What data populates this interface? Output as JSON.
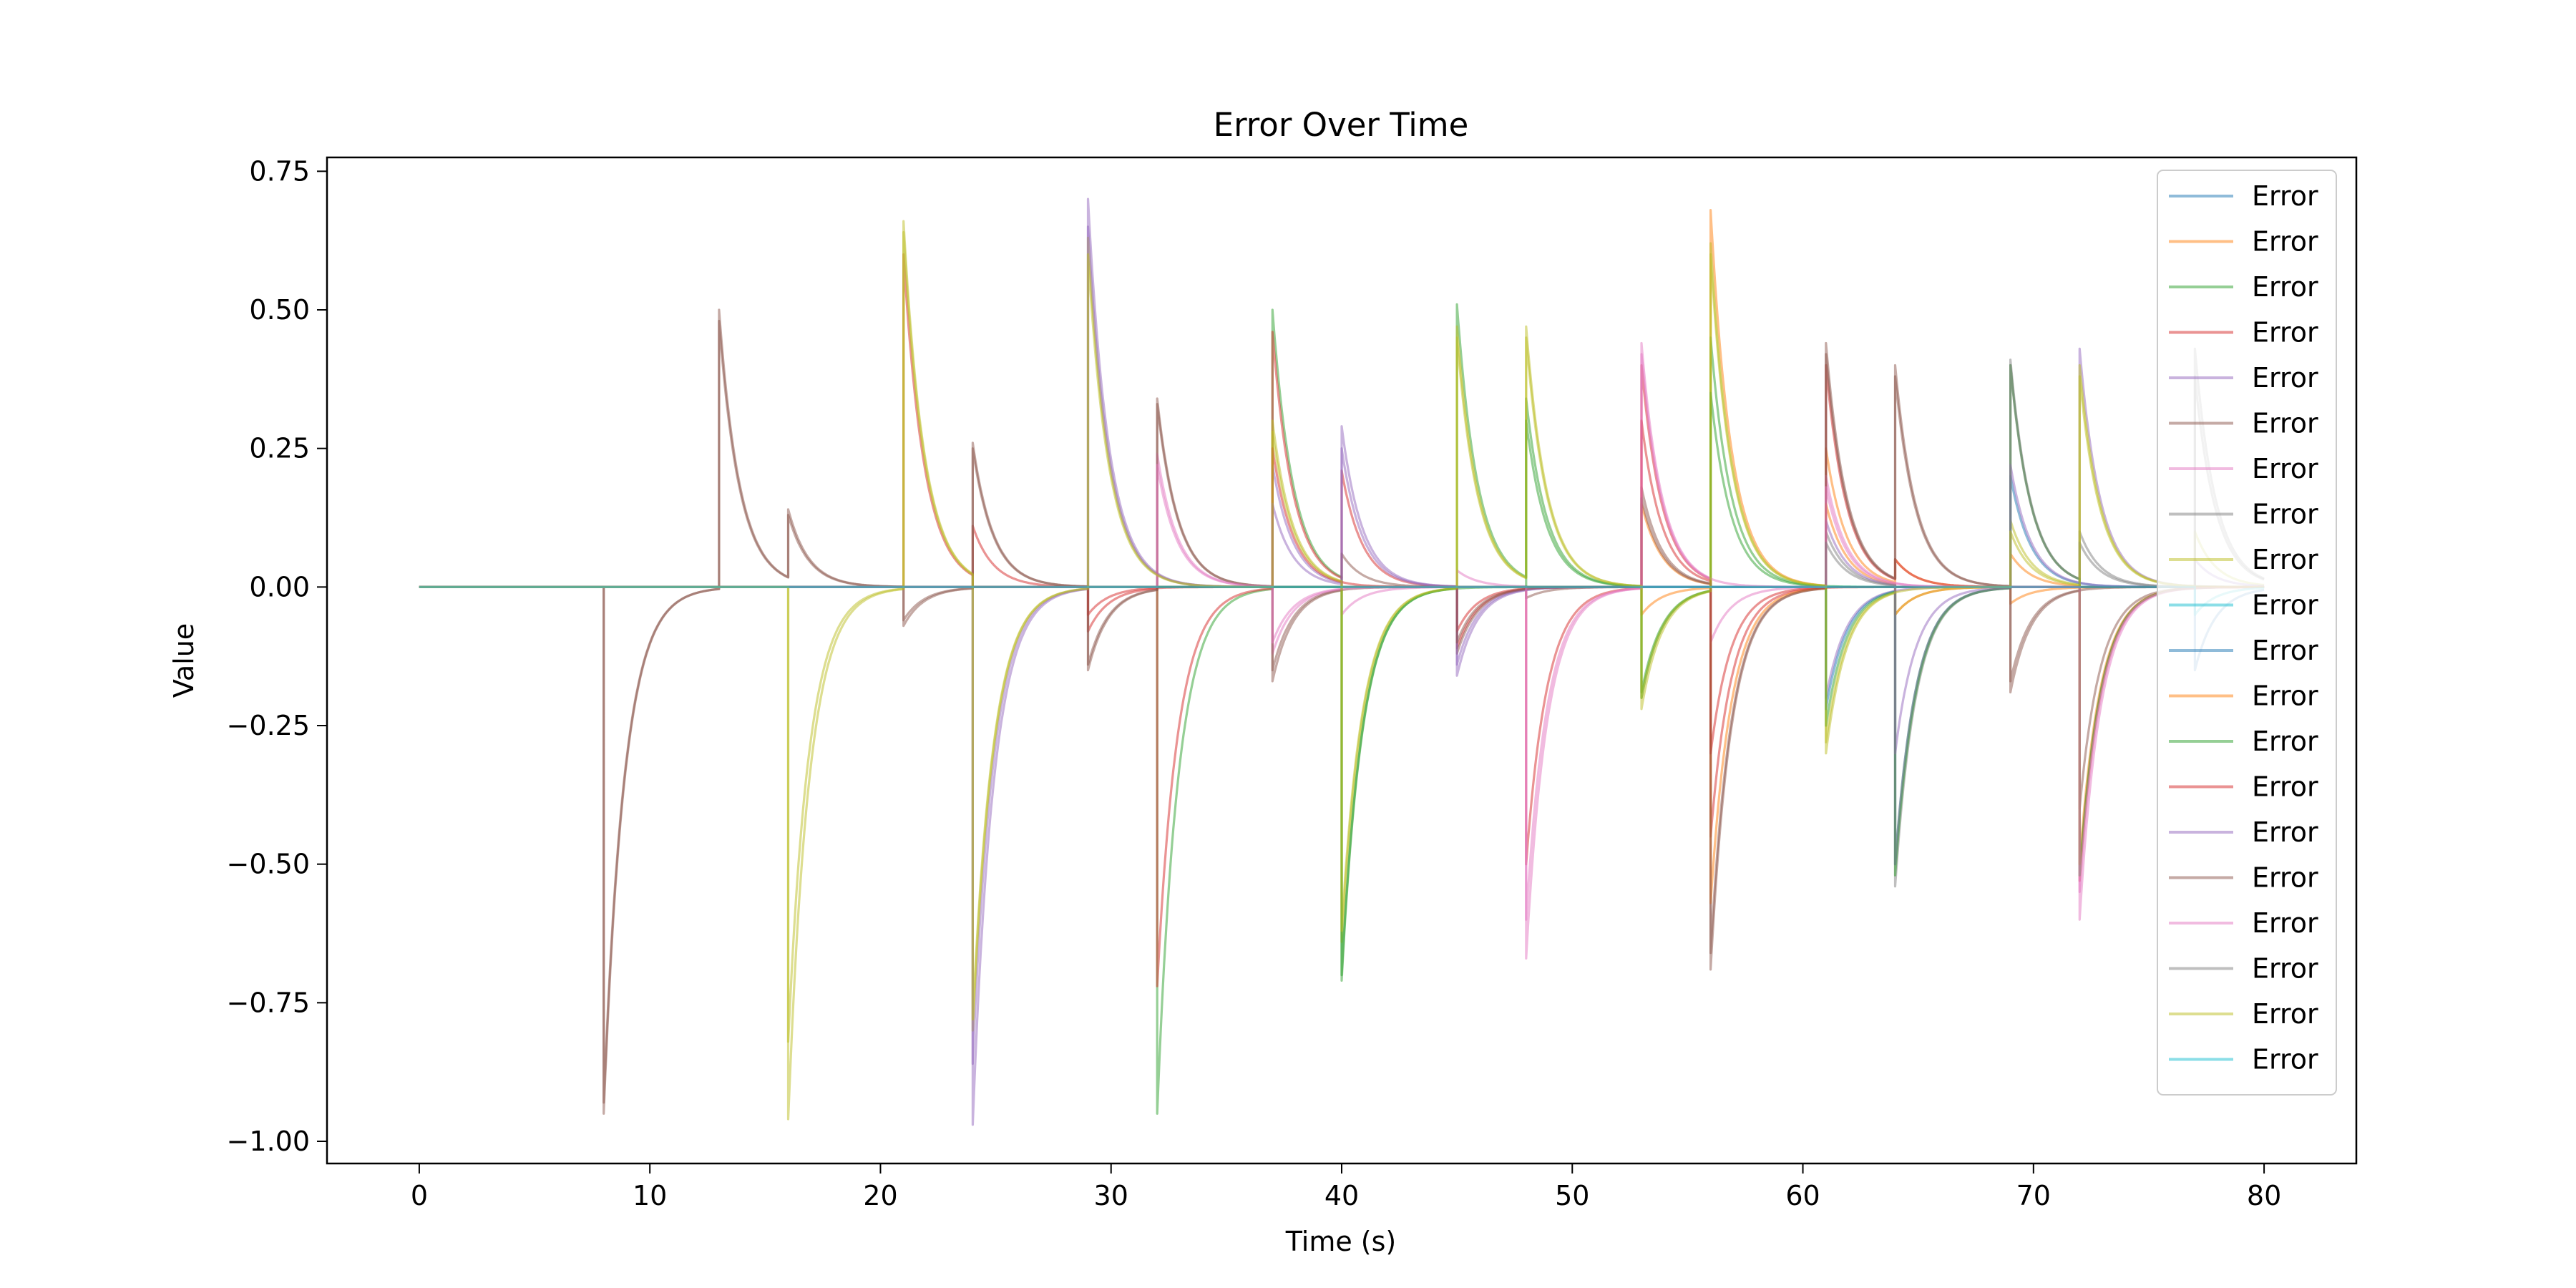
{
  "chart_data": {
    "type": "line",
    "title": "Error Over Time",
    "xlabel": "Time (s)",
    "ylabel": "Value",
    "xlim": [
      -4,
      84
    ],
    "ylim": [
      -1.04,
      0.775
    ],
    "xticks": [
      0,
      10,
      20,
      30,
      40,
      50,
      60,
      70,
      80
    ],
    "yticks": [
      0.75,
      0.5,
      0.25,
      0.0,
      -0.25,
      -0.5,
      -0.75,
      -1.0
    ],
    "xtick_labels": [
      "0",
      "10",
      "20",
      "30",
      "40",
      "50",
      "60",
      "70",
      "80"
    ],
    "ytick_labels": [
      "0.75",
      "0.50",
      "0.25",
      "0.00",
      "−0.25",
      "−0.50",
      "−0.75",
      "−1.00"
    ],
    "grid": false,
    "legend_position": "top-right",
    "t_end": 80,
    "series": [
      {
        "name": "Error",
        "color": "#1f77b4",
        "steps": []
      },
      {
        "name": "Error",
        "color": "#ff7f0e",
        "steps": [
          [
            53,
            0.15
          ],
          [
            56,
            0.68
          ],
          [
            61,
            0.25
          ],
          [
            64,
            0.05
          ],
          [
            69,
            -0.03
          ]
        ]
      },
      {
        "name": "Error",
        "color": "#2ca02c",
        "steps": [
          [
            32,
            -0.95
          ],
          [
            37,
            0.5
          ],
          [
            40,
            -0.71
          ],
          [
            45,
            0.51
          ],
          [
            48,
            0.34
          ],
          [
            53,
            -0.19
          ],
          [
            56,
            0.45
          ]
        ]
      },
      {
        "name": "Error",
        "color": "#d62728",
        "steps": [
          [
            21,
            0.6
          ],
          [
            24,
            0.11
          ],
          [
            29,
            -0.08
          ],
          [
            32,
            -0.72
          ],
          [
            37,
            0.46
          ],
          [
            40,
            0.21
          ],
          [
            45,
            -0.11
          ],
          [
            48,
            -0.5
          ],
          [
            53,
            0.4
          ],
          [
            56,
            -0.45
          ],
          [
            61,
            0.4
          ],
          [
            64,
            0.05
          ],
          [
            72,
            -0.53
          ]
        ]
      },
      {
        "name": "Error",
        "color": "#9467bd",
        "steps": [
          [
            24,
            -0.86
          ],
          [
            29,
            0.7
          ],
          [
            37,
            0.22
          ],
          [
            40,
            0.29
          ],
          [
            45,
            -0.16
          ],
          [
            61,
            -0.2
          ],
          [
            72,
            0.43
          ]
        ]
      },
      {
        "name": "Error",
        "color": "#8c564b",
        "steps": [
          [
            8,
            -0.95
          ],
          [
            13,
            0.5
          ],
          [
            16,
            0.14
          ],
          [
            21,
            -0.07
          ],
          [
            24,
            0.26
          ],
          [
            29,
            -0.15
          ],
          [
            32,
            0.34
          ],
          [
            37,
            -0.17
          ],
          [
            40,
            0.06
          ],
          [
            45,
            -0.12
          ],
          [
            48,
            -0.02
          ],
          [
            53,
            0.18
          ],
          [
            56,
            -0.69
          ],
          [
            61,
            0.44
          ],
          [
            64,
            0.4
          ],
          [
            69,
            -0.19
          ],
          [
            72,
            -0.4
          ]
        ]
      },
      {
        "name": "Error",
        "color": "#e377c2",
        "steps": [
          [
            32,
            0.24
          ],
          [
            37,
            -0.12
          ],
          [
            40,
            -0.05
          ],
          [
            45,
            0.03
          ],
          [
            48,
            -0.67
          ],
          [
            53,
            0.44
          ],
          [
            56,
            -0.1
          ],
          [
            61,
            0.2
          ],
          [
            72,
            -0.6
          ]
        ]
      },
      {
        "name": "Error",
        "color": "#7f7f7f",
        "steps": [
          [
            61,
            0.1
          ],
          [
            64,
            -0.54
          ],
          [
            69,
            0.41
          ],
          [
            72,
            0.1
          ],
          [
            77,
            0.43
          ]
        ]
      },
      {
        "name": "Error",
        "color": "#bcbd22",
        "steps": [
          [
            16,
            -0.96
          ],
          [
            21,
            0.66
          ],
          [
            24,
            -0.8
          ],
          [
            29,
            0.63
          ],
          [
            37,
            0.3
          ],
          [
            40,
            -0.64
          ],
          [
            45,
            0.47
          ],
          [
            48,
            0.47
          ],
          [
            53,
            -0.22
          ],
          [
            56,
            0.62
          ],
          [
            61,
            -0.3
          ],
          [
            64,
            -0.05
          ],
          [
            69,
            0.12
          ],
          [
            72,
            0.4
          ],
          [
            77,
            0.1
          ]
        ]
      },
      {
        "name": "Error",
        "color": "#17becf",
        "steps": []
      },
      {
        "name": "Error",
        "color": "#1f77b4",
        "steps": [
          [
            61,
            -0.22
          ],
          [
            64,
            -0.5
          ],
          [
            69,
            0.2
          ],
          [
            77,
            -0.15
          ]
        ]
      },
      {
        "name": "Error",
        "color": "#ff7f0e",
        "steps": [
          [
            53,
            -0.05
          ],
          [
            56,
            -0.57
          ],
          [
            61,
            0.15
          ],
          [
            64,
            -0.05
          ],
          [
            69,
            0.06
          ],
          [
            72,
            -0.5
          ]
        ]
      },
      {
        "name": "Error",
        "color": "#2ca02c",
        "steps": [
          [
            40,
            -0.7
          ],
          [
            48,
            0.3
          ],
          [
            53,
            -0.2
          ],
          [
            56,
            0.35
          ],
          [
            61,
            -0.25
          ],
          [
            64,
            -0.52
          ],
          [
            69,
            0.4
          ],
          [
            72,
            -0.52
          ]
        ]
      },
      {
        "name": "Error",
        "color": "#d62728",
        "steps": [
          [
            29,
            -0.05
          ],
          [
            37,
            0.25
          ],
          [
            45,
            -0.08
          ],
          [
            53,
            0.3
          ],
          [
            56,
            -0.3
          ]
        ]
      },
      {
        "name": "Error",
        "color": "#9467bd",
        "steps": [
          [
            24,
            -0.97
          ],
          [
            29,
            0.65
          ],
          [
            37,
            0.15
          ],
          [
            40,
            0.25
          ],
          [
            45,
            -0.14
          ],
          [
            61,
            0.12
          ],
          [
            64,
            -0.3
          ],
          [
            69,
            0.22
          ],
          [
            77,
            0.05
          ]
        ]
      },
      {
        "name": "Error",
        "color": "#8c564b",
        "steps": [
          [
            8,
            -0.93
          ],
          [
            13,
            0.48
          ],
          [
            16,
            0.13
          ],
          [
            21,
            -0.06
          ],
          [
            24,
            0.25
          ],
          [
            29,
            -0.14
          ],
          [
            32,
            0.33
          ],
          [
            37,
            -0.15
          ],
          [
            45,
            -0.1
          ],
          [
            53,
            0.16
          ],
          [
            56,
            -0.66
          ],
          [
            61,
            0.42
          ],
          [
            64,
            0.38
          ],
          [
            69,
            -0.17
          ]
        ]
      },
      {
        "name": "Error",
        "color": "#e377c2",
        "steps": [
          [
            32,
            0.22
          ],
          [
            37,
            -0.1
          ],
          [
            48,
            -0.6
          ],
          [
            53,
            0.42
          ],
          [
            61,
            0.18
          ],
          [
            72,
            -0.55
          ]
        ]
      },
      {
        "name": "Error",
        "color": "#7f7f7f",
        "steps": [
          [
            61,
            0.08
          ],
          [
            64,
            -0.5
          ],
          [
            69,
            0.4
          ],
          [
            72,
            0.08
          ],
          [
            77,
            0.38
          ]
        ]
      },
      {
        "name": "Error",
        "color": "#bcbd22",
        "steps": [
          [
            16,
            -0.82
          ],
          [
            21,
            0.64
          ],
          [
            24,
            -0.78
          ],
          [
            29,
            0.6
          ],
          [
            37,
            0.28
          ],
          [
            40,
            -0.62
          ],
          [
            45,
            0.45
          ],
          [
            48,
            0.45
          ],
          [
            53,
            -0.2
          ],
          [
            56,
            0.6
          ],
          [
            61,
            -0.28
          ],
          [
            69,
            0.1
          ],
          [
            72,
            0.38
          ]
        ]
      },
      {
        "name": "Error",
        "color": "#17becf",
        "steps": [
          [
            77,
            -0.05
          ]
        ]
      }
    ]
  }
}
